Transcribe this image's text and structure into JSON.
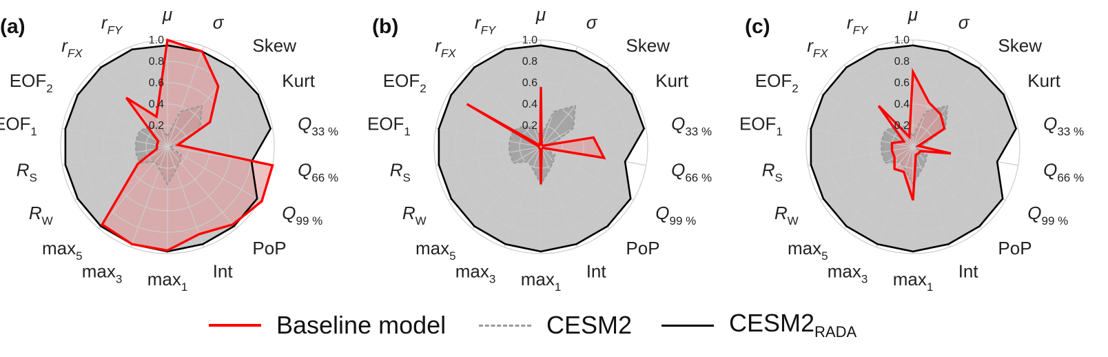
{
  "chart_data": [
    {
      "type": "radar",
      "panel_label": "(a)",
      "axes": [
        {
          "main": "μ",
          "sub": "",
          "italic": true
        },
        {
          "main": "σ",
          "sub": "",
          "italic": true
        },
        {
          "main": "Skew",
          "sub": "",
          "italic": false
        },
        {
          "main": "Kurt",
          "sub": "",
          "italic": false
        },
        {
          "main": "Q",
          "sub": "33 %",
          "italic": true
        },
        {
          "main": "Q",
          "sub": "66 %",
          "italic": true
        },
        {
          "main": "Q",
          "sub": "99 %",
          "italic": true
        },
        {
          "main": "PoP",
          "sub": "",
          "italic": false
        },
        {
          "main": "Int",
          "sub": "",
          "italic": false
        },
        {
          "main": "max",
          "sub": "1",
          "italic": false
        },
        {
          "main": "max",
          "sub": "3",
          "italic": false
        },
        {
          "main": "max",
          "sub": "5",
          "italic": false
        },
        {
          "main": "R",
          "sub": "W",
          "italic": true
        },
        {
          "main": "R",
          "sub": "S",
          "italic": true
        },
        {
          "main": "EOF",
          "sub": "1",
          "italic": false
        },
        {
          "main": "EOF",
          "sub": "2",
          "italic": false
        },
        {
          "main": "r",
          "sub": "FX",
          "italic": true
        },
        {
          "main": "r",
          "sub": "FY",
          "italic": true
        }
      ],
      "r_ticks": [
        "0.2",
        "0.4",
        "0.6",
        "0.8",
        "1.0"
      ],
      "rlim": [
        0,
        1.0
      ],
      "series": [
        {
          "name": "CESM2_RADA",
          "values": [
            0.95,
            0.95,
            0.96,
            0.98,
            0.98,
            0.8,
            0.97,
            0.97,
            0.97,
            0.98,
            0.97,
            0.97,
            0.97,
            0.97,
            0.97,
            0.97,
            0.97,
            0.97
          ]
        },
        {
          "name": "CESM2",
          "values": [
            0.1,
            0.35,
            0.5,
            0.35,
            0.1,
            0.02,
            0.15,
            0.18,
            0.23,
            0.35,
            0.22,
            0.18,
            0.3,
            0.3,
            0.3,
            0.3,
            0.25,
            0.2
          ]
        },
        {
          "name": "Baseline model",
          "values": [
            1.0,
            0.95,
            0.74,
            0.46,
            0.1,
            1.0,
            1.02,
            0.95,
            0.87,
            0.97,
            0.97,
            0.95,
            0.32,
            0.1,
            0.1,
            0.1,
            0.6,
            0.3
          ]
        }
      ]
    },
    {
      "type": "radar",
      "panel_label": "(b)",
      "axes": [
        {
          "main": "μ",
          "sub": "",
          "italic": true
        },
        {
          "main": "σ",
          "sub": "",
          "italic": true
        },
        {
          "main": "Skew",
          "sub": "",
          "italic": false
        },
        {
          "main": "Kurt",
          "sub": "",
          "italic": false
        },
        {
          "main": "Q",
          "sub": "33 %",
          "italic": true
        },
        {
          "main": "Q",
          "sub": "66 %",
          "italic": true
        },
        {
          "main": "Q",
          "sub": "99 %",
          "italic": true
        },
        {
          "main": "PoP",
          "sub": "",
          "italic": false
        },
        {
          "main": "Int",
          "sub": "",
          "italic": false
        },
        {
          "main": "max",
          "sub": "1",
          "italic": false
        },
        {
          "main": "max",
          "sub": "3",
          "italic": false
        },
        {
          "main": "max",
          "sub": "5",
          "italic": false
        },
        {
          "main": "R",
          "sub": "W",
          "italic": true
        },
        {
          "main": "R",
          "sub": "S",
          "italic": true
        },
        {
          "main": "EOF",
          "sub": "1",
          "italic": false
        },
        {
          "main": "EOF",
          "sub": "2",
          "italic": false
        },
        {
          "main": "r",
          "sub": "FX",
          "italic": true
        },
        {
          "main": "r",
          "sub": "FY",
          "italic": true
        }
      ],
      "r_ticks": [
        "0.2",
        "0.4",
        "0.6",
        "0.8",
        "1.0"
      ],
      "rlim": [
        0,
        1.0
      ],
      "series": [
        {
          "name": "CESM2_RADA",
          "values": [
            0.95,
            0.95,
            0.96,
            0.98,
            0.98,
            0.8,
            0.97,
            0.97,
            0.97,
            0.98,
            0.97,
            0.97,
            0.97,
            0.97,
            0.97,
            0.97,
            0.97,
            0.97
          ]
        },
        {
          "name": "CESM2",
          "values": [
            0.1,
            0.35,
            0.5,
            0.35,
            0.1,
            0.02,
            0.15,
            0.18,
            0.23,
            0.35,
            0.22,
            0.18,
            0.3,
            0.3,
            0.3,
            0.3,
            0.25,
            0.2
          ]
        },
        {
          "name": "Baseline model",
          "values": [
            0.56,
            0.02,
            0.02,
            0.02,
            0.5,
            0.6,
            0.02,
            0.02,
            0.02,
            0.35,
            0.02,
            0.02,
            0.02,
            0.02,
            0.02,
            0.8,
            0.02,
            0.02
          ]
        }
      ]
    },
    {
      "type": "radar",
      "panel_label": "(c)",
      "axes": [
        {
          "main": "μ",
          "sub": "",
          "italic": true
        },
        {
          "main": "σ",
          "sub": "",
          "italic": true
        },
        {
          "main": "Skew",
          "sub": "",
          "italic": false
        },
        {
          "main": "Kurt",
          "sub": "",
          "italic": false
        },
        {
          "main": "Q",
          "sub": "33 %",
          "italic": true
        },
        {
          "main": "Q",
          "sub": "66 %",
          "italic": true
        },
        {
          "main": "Q",
          "sub": "99 %",
          "italic": true
        },
        {
          "main": "PoP",
          "sub": "",
          "italic": false
        },
        {
          "main": "Int",
          "sub": "",
          "italic": false
        },
        {
          "main": "max",
          "sub": "1",
          "italic": false
        },
        {
          "main": "max",
          "sub": "3",
          "italic": false
        },
        {
          "main": "max",
          "sub": "5",
          "italic": false
        },
        {
          "main": "R",
          "sub": "W",
          "italic": true
        },
        {
          "main": "R",
          "sub": "S",
          "italic": true
        },
        {
          "main": "EOF",
          "sub": "1",
          "italic": false
        },
        {
          "main": "EOF",
          "sub": "2",
          "italic": false
        },
        {
          "main": "r",
          "sub": "FX",
          "italic": true
        },
        {
          "main": "r",
          "sub": "FY",
          "italic": true
        }
      ],
      "r_ticks": [
        "0.2",
        "0.4",
        "0.6",
        "0.8",
        "1.0"
      ],
      "rlim": [
        0,
        1.0
      ],
      "series": [
        {
          "name": "CESM2_RADA",
          "values": [
            0.95,
            0.95,
            0.96,
            0.98,
            0.98,
            0.8,
            0.97,
            0.97,
            0.97,
            0.98,
            0.97,
            0.97,
            0.97,
            0.97,
            0.97,
            0.97,
            0.97,
            0.97
          ]
        },
        {
          "name": "CESM2",
          "values": [
            0.1,
            0.35,
            0.5,
            0.35,
            0.1,
            0.02,
            0.15,
            0.18,
            0.23,
            0.35,
            0.22,
            0.18,
            0.3,
            0.3,
            0.3,
            0.3,
            0.25,
            0.2
          ]
        },
        {
          "name": "Baseline model",
          "values": [
            0.7,
            0.44,
            0.4,
            0.34,
            0.05,
            0.36,
            0.08,
            0.08,
            0.08,
            0.5,
            0.25,
            0.27,
            0.2,
            0.2,
            0.2,
            0.1,
            0.5,
            0.1
          ]
        }
      ]
    }
  ],
  "legend": {
    "baseline": "Baseline model",
    "cesm2": "CESM2",
    "rada_main": "CESM2",
    "rada_sub": "RADA"
  },
  "colors": {
    "baseline": "#ff0000",
    "baseline_fill": "#e39a9a",
    "cesm2": "#999999",
    "rada": "#000000",
    "rada_fill": "#c8c8c8",
    "grid": "#cccccc"
  }
}
